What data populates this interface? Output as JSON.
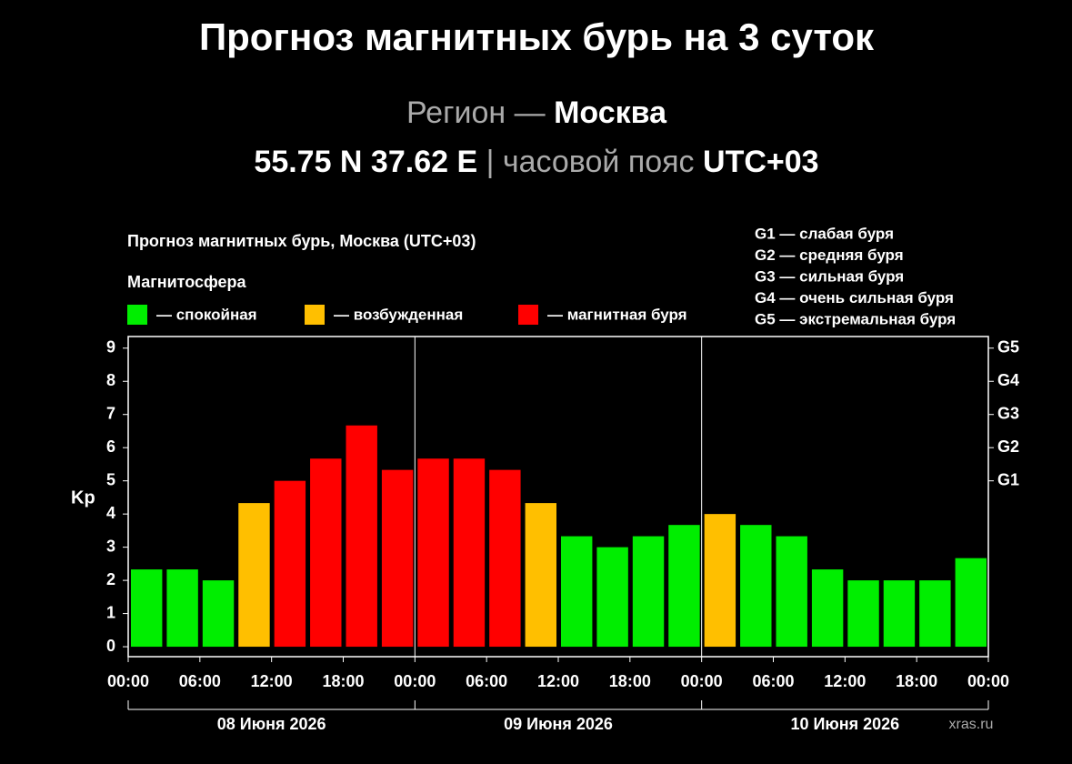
{
  "header": {
    "title": "Прогноз магнитных бурь на 3 суток",
    "region_label": "Регион —",
    "region": "Москва",
    "coords": "55.75 N 37.62 E",
    "tz_label": "| часовой пояс",
    "tz": "UTC+03"
  },
  "chart_data": {
    "type": "bar",
    "title": "Прогноз магнитных бурь, Москва (UTC+03)",
    "legend_title": "Магнитосфера",
    "legend": [
      {
        "name": "— спокойная",
        "color": "#00ee00"
      },
      {
        "name": "— возбужденная",
        "color": "#ffbf00"
      },
      {
        "name": "— магнитная буря",
        "color": "#ff0000"
      }
    ],
    "scale_notes": [
      "G1 — слабая буря",
      "G2 — средняя буря",
      "G3 — сильная буря",
      "G4 — очень сильная буря",
      "G5 — экстремальная буря"
    ],
    "ylabel": "Kp",
    "values": [
      2.33,
      2.33,
      2.0,
      4.33,
      5.0,
      5.67,
      6.67,
      5.33,
      5.67,
      5.67,
      5.33,
      4.33,
      3.33,
      3.0,
      3.33,
      3.67,
      4.0,
      3.67,
      3.33,
      2.33,
      2.0,
      2.0,
      2.0,
      2.67
    ],
    "colors": [
      "#00ee00",
      "#00ee00",
      "#00ee00",
      "#ffbf00",
      "#ff0000",
      "#ff0000",
      "#ff0000",
      "#ff0000",
      "#ff0000",
      "#ff0000",
      "#ff0000",
      "#ffbf00",
      "#00ee00",
      "#00ee00",
      "#00ee00",
      "#00ee00",
      "#ffbf00",
      "#00ee00",
      "#00ee00",
      "#00ee00",
      "#00ee00",
      "#00ee00",
      "#00ee00",
      "#00ee00"
    ],
    "xticks": [
      "00:00",
      "06:00",
      "12:00",
      "18:00",
      "00:00",
      "06:00",
      "12:00",
      "18:00",
      "00:00",
      "06:00",
      "12:00",
      "18:00",
      "00:00"
    ],
    "days": [
      "08 Июня 2026",
      "09 Июня 2026",
      "10 Июня 2026"
    ],
    "ylim": [
      -0.3,
      9.35
    ],
    "yticks": [
      0,
      1,
      2,
      3,
      4,
      5,
      6,
      7,
      8,
      9
    ],
    "y2ticks": [
      {
        "value": 5,
        "label": "G1"
      },
      {
        "value": 6,
        "label": "G2"
      },
      {
        "value": 7,
        "label": "G3"
      },
      {
        "value": 8,
        "label": "G4"
      },
      {
        "value": 9,
        "label": "G5"
      }
    ],
    "watermark": "xras.ru"
  }
}
